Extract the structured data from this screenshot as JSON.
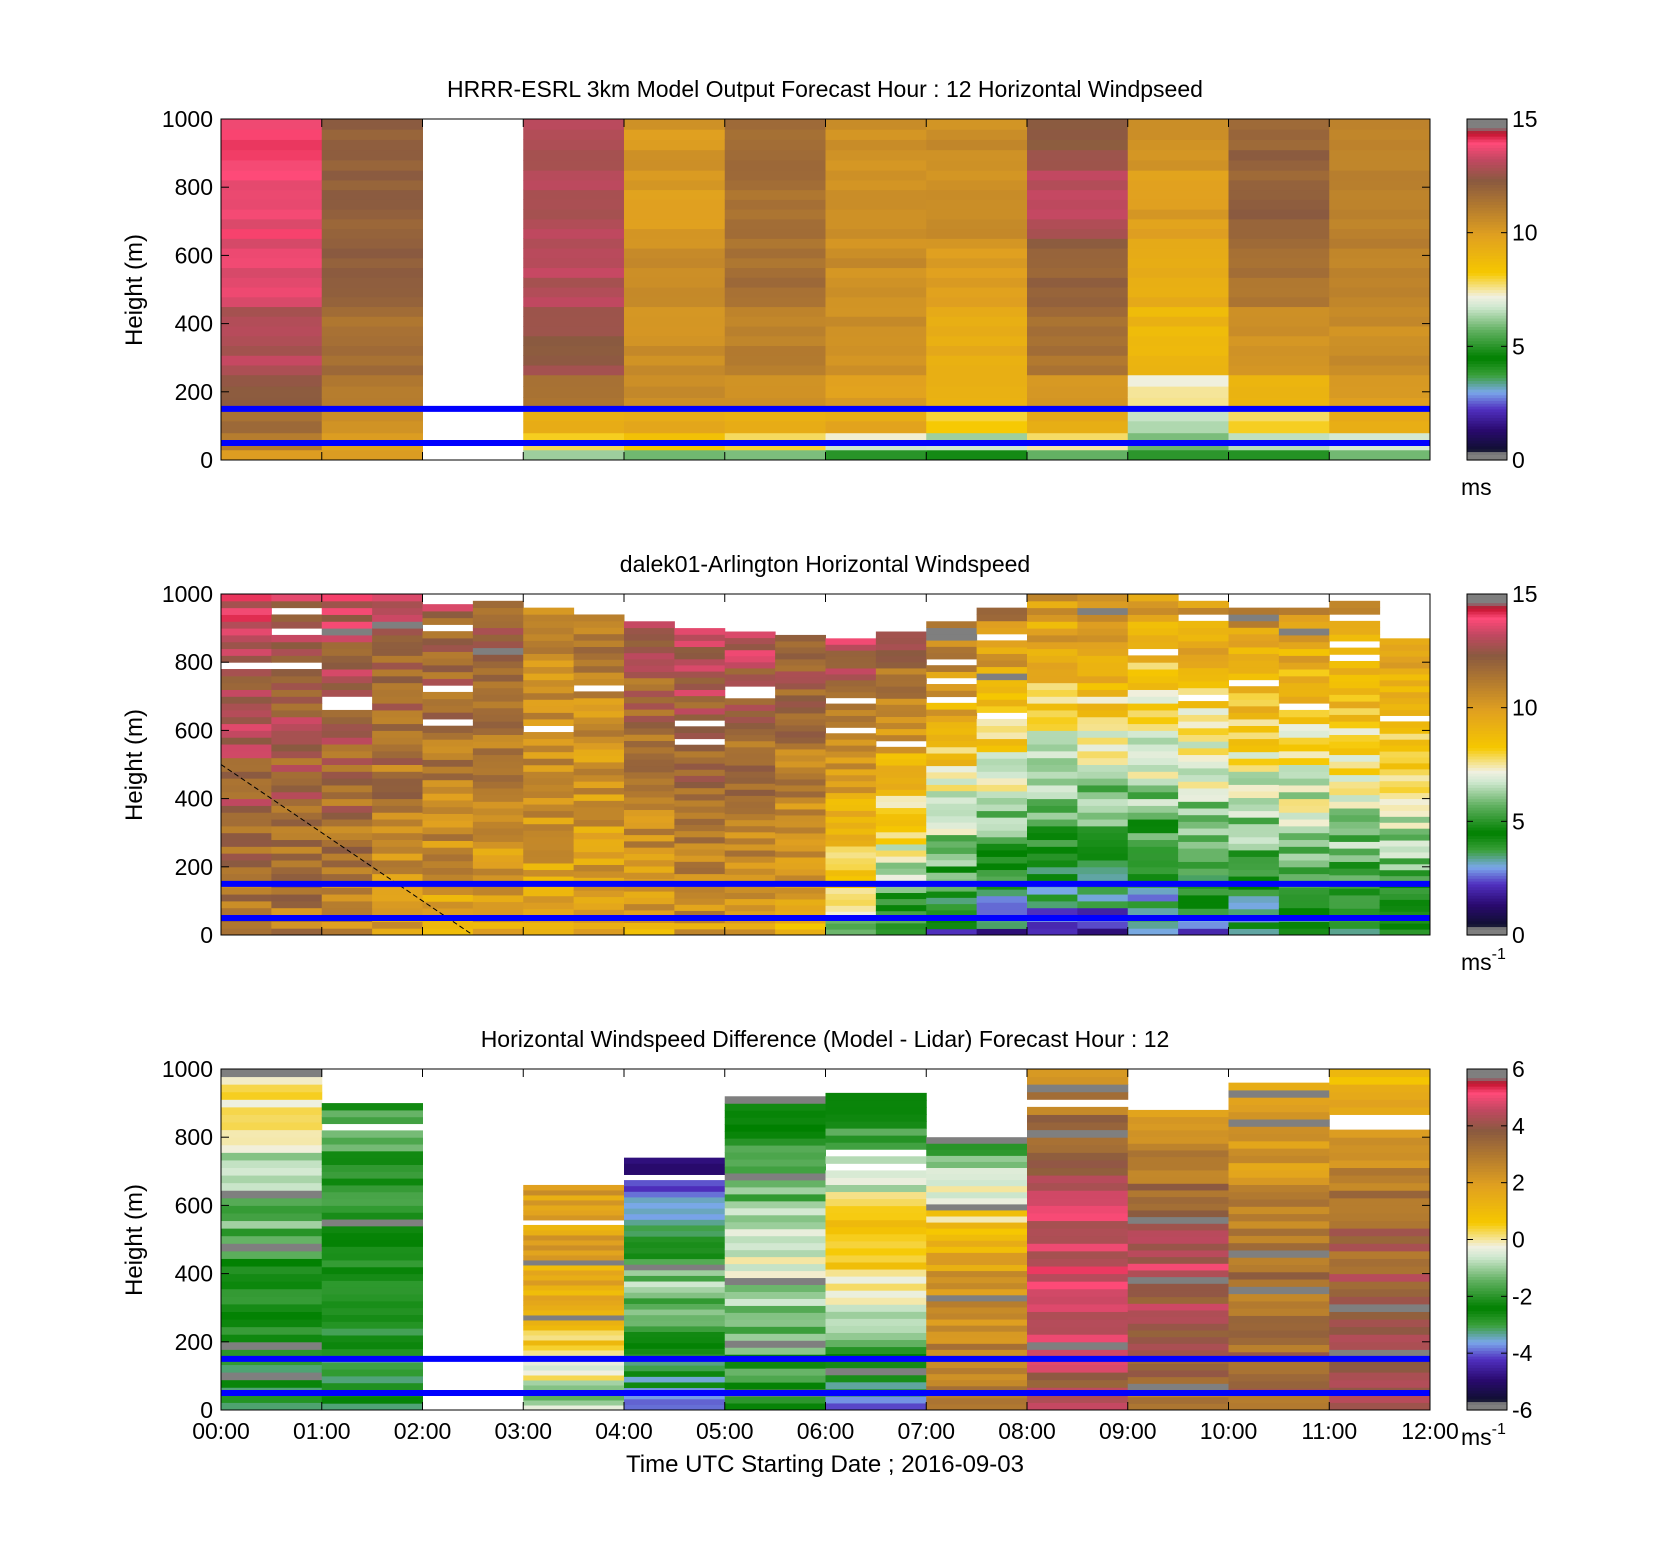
{
  "figure": {
    "xlabel": "Time UTC  Starting Date ; 2016-09-03",
    "x_ticks": [
      "00:00",
      "01:00",
      "02:00",
      "03:00",
      "04:00",
      "05:00",
      "06:00",
      "07:00",
      "08:00",
      "09:00",
      "10:00",
      "11:00",
      "12:00"
    ]
  },
  "colors": {
    "colormap_speed": [
      [
        0.0,
        "#7f7f7f"
      ],
      [
        0.02,
        "#7f7f7f"
      ],
      [
        0.03,
        "#101030"
      ],
      [
        0.09,
        "#2a0a70"
      ],
      [
        0.15,
        "#5030c0"
      ],
      [
        0.2,
        "#7aa8ea"
      ],
      [
        0.25,
        "#3aa03a"
      ],
      [
        0.3,
        "#008000"
      ],
      [
        0.38,
        "#60b060"
      ],
      [
        0.45,
        "#d0e8d0"
      ],
      [
        0.48,
        "#f0f0e0"
      ],
      [
        0.5,
        "#f5e6a0"
      ],
      [
        0.55,
        "#f6c800"
      ],
      [
        0.66,
        "#e0a020"
      ],
      [
        0.75,
        "#b07830"
      ],
      [
        0.82,
        "#8a5a40"
      ],
      [
        0.88,
        "#c04860"
      ],
      [
        0.93,
        "#ff4a78"
      ],
      [
        0.96,
        "#c0102a"
      ],
      [
        0.975,
        "#7f7f7f"
      ],
      [
        1.0,
        "#7f7f7f"
      ]
    ],
    "height_lines": "#0000ff",
    "dashed_line": "#000000"
  },
  "chart_data": [
    {
      "type": "heatmap",
      "title": "HRRR-ESRL 3km Model Output   Forecast Hour : 12 Horizontal Windpseed",
      "ylabel": "Height (m)",
      "ylim": [
        0,
        1000
      ],
      "y_ticks": [
        "0",
        "200",
        "400",
        "600",
        "800",
        "1000"
      ],
      "xlim_hours": [
        0,
        12
      ],
      "x_cols": 12,
      "clim": [
        0,
        15
      ],
      "colorbar_ticks": [
        "0",
        "5",
        "10",
        "15"
      ],
      "colorbar_unit": "ms",
      "colorbar_unit_sup": "",
      "blue_lines_m": [
        150,
        50
      ],
      "missing_columns": [
        2
      ],
      "rows": [
        {
          "y": [
            0,
            30
          ],
          "values": [
            10,
            10,
            null,
            6.5,
            6,
            6,
            5,
            5,
            5.5,
            5,
            5,
            6
          ]
        },
        {
          "y": [
            30,
            80
          ],
          "values": [
            11,
            10,
            null,
            8,
            8.5,
            8,
            7,
            6.5,
            7.5,
            6,
            6.5,
            7
          ]
        },
        {
          "y": [
            80,
            150
          ],
          "values": [
            11.5,
            10.5,
            null,
            9.5,
            9.5,
            9.5,
            9.5,
            8,
            9.5,
            6.5,
            8,
            9.5
          ]
        },
        {
          "y": [
            150,
            250
          ],
          "values": [
            12.5,
            11,
            null,
            11.5,
            10.5,
            10.5,
            10,
            9,
            10,
            7.5,
            9.2,
            10
          ]
        },
        {
          "y": [
            250,
            450
          ],
          "values": [
            13,
            11.5,
            null,
            12.5,
            10.5,
            11,
            10.5,
            9.5,
            11.5,
            9,
            10.5,
            10.5
          ]
        },
        {
          "y": [
            450,
            650
          ],
          "values": [
            13.5,
            12,
            null,
            13,
            10.5,
            11.5,
            10.5,
            10,
            12,
            9.5,
            11.5,
            11
          ]
        },
        {
          "y": [
            650,
            850
          ],
          "values": [
            13.8,
            12,
            null,
            13,
            10,
            11.5,
            10.5,
            10.5,
            13,
            10,
            12,
            11
          ]
        },
        {
          "y": [
            850,
            1000
          ],
          "values": [
            14,
            12.2,
            null,
            13,
            10.2,
            11.5,
            10.5,
            10.5,
            12.5,
            10.5,
            12,
            11
          ]
        }
      ]
    },
    {
      "type": "heatmap",
      "title": "dalek01-Arlington  Horizontal Windspeed",
      "ylabel": "Height (m)",
      "ylim": [
        0,
        1000
      ],
      "y_ticks": [
        "0",
        "200",
        "400",
        "600",
        "800",
        "1000"
      ],
      "xlim_hours": [
        0,
        12
      ],
      "clim": [
        0,
        15
      ],
      "colorbar_ticks": [
        "0",
        "5",
        "10",
        "15"
      ],
      "colorbar_unit": "ms",
      "colorbar_unit_sup": "-1",
      "blue_lines_m": [
        150,
        50
      ],
      "dashed_line": {
        "x_hours": [
          0,
          2.5
        ],
        "y_m": [
          500,
          0
        ]
      },
      "profile_hours": [
        0.0,
        0.5,
        1.0,
        1.5,
        2.0,
        2.5,
        3.0,
        3.5,
        4.0,
        4.5,
        5.0,
        5.5,
        6.0,
        6.5,
        7.0,
        7.5,
        8.0,
        8.5,
        9.0,
        9.5,
        10.0,
        10.5,
        11.0,
        11.5
      ],
      "profile_levels_m": [
        0,
        50,
        100,
        150,
        200,
        300,
        400,
        500,
        600,
        700,
        800,
        900,
        1000
      ],
      "profile_tops_m": [
        1000,
        1000,
        1000,
        1000,
        990,
        980,
        960,
        940,
        920,
        900,
        890,
        880,
        870,
        890,
        920,
        960,
        1000,
        1000,
        1000,
        980,
        960,
        1000,
        980,
        870
      ],
      "profile_bottom_mean": [
        11,
        11,
        10.5,
        10,
        9.5,
        9.5,
        9.5,
        9.5,
        9.5,
        10,
        9.5,
        9,
        6,
        4,
        3,
        2.5,
        2,
        2,
        2.5,
        3,
        3,
        3.5,
        3.5,
        4
      ],
      "profile_top_mean": [
        13.5,
        13,
        13,
        12.5,
        12.5,
        12,
        11,
        11,
        12.5,
        13,
        13,
        12.5,
        13,
        12.5,
        11.5,
        11,
        10.5,
        10.5,
        10,
        10,
        10.5,
        10.5,
        10.5,
        10
      ]
    },
    {
      "type": "heatmap",
      "title": "Horizontal Windspeed Difference (Model - Lidar) Forecast Hour : 12",
      "ylabel": "Height (m)",
      "ylim": [
        0,
        1000
      ],
      "y_ticks": [
        "0",
        "200",
        "400",
        "600",
        "800",
        "1000"
      ],
      "xlim_hours": [
        0,
        12
      ],
      "x_cols": 12,
      "clim": [
        -6,
        6
      ],
      "colorbar_ticks": [
        "-6",
        "-4",
        "-2",
        "0",
        "2",
        "4",
        "6"
      ],
      "colorbar_unit": "ms",
      "colorbar_unit_sup": "-1",
      "blue_lines_m": [
        150,
        50
      ],
      "column_tops_m": [
        1000,
        900,
        0,
        660,
        740,
        920,
        930,
        800,
        1000,
        880,
        960,
        1000
      ],
      "column_profiles": [
        {
          "bottom": -3,
          "mid": -1.5,
          "top": 0.5
        },
        {
          "bottom": -3,
          "mid": -2.5,
          "top": -1.5
        },
        {
          "bottom": null,
          "mid": null,
          "top": null
        },
        {
          "bottom": -1,
          "mid": 1.5,
          "top": 2
        },
        {
          "bottom": -3.5,
          "mid": -1,
          "top": -5.5
        },
        {
          "bottom": -2.5,
          "mid": -0.5,
          "top": -3
        },
        {
          "bottom": -3.5,
          "mid": 1,
          "top": -2.5
        },
        {
          "bottom": 3,
          "mid": 2,
          "top": -2
        },
        {
          "bottom": 4,
          "mid": 5,
          "top": 2.5
        },
        {
          "bottom": 3,
          "mid": 4.5,
          "top": 2
        },
        {
          "bottom": 3.5,
          "mid": 3,
          "top": 1.5
        },
        {
          "bottom": 4.5,
          "mid": 3.5,
          "top": 1
        }
      ]
    }
  ]
}
